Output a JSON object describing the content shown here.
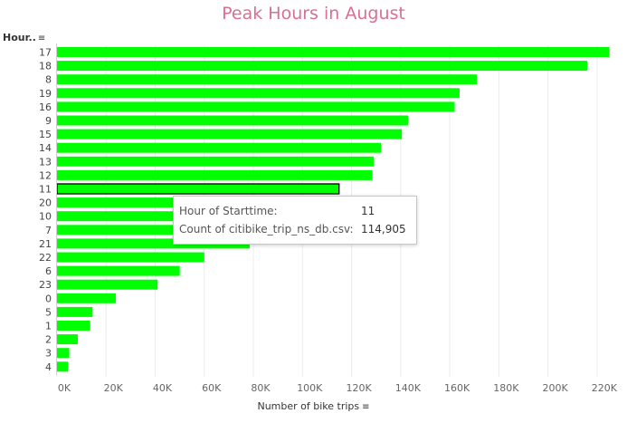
{
  "chart_data": {
    "type": "bar",
    "orientation": "horizontal",
    "title": "Peak Hours in August",
    "ylabel": "Hour..",
    "xlabel": "Number of bike trips",
    "categories": [
      "17",
      "18",
      "8",
      "19",
      "16",
      "9",
      "15",
      "14",
      "13",
      "12",
      "11",
      "20",
      "10",
      "7",
      "21",
      "22",
      "6",
      "23",
      "0",
      "5",
      "1",
      "2",
      "3",
      "4"
    ],
    "values": [
      225000,
      216000,
      171000,
      164000,
      162000,
      143000,
      140500,
      132000,
      129000,
      128500,
      114905,
      48000,
      48000,
      48000,
      78500,
      60000,
      50000,
      41000,
      24000,
      14500,
      13500,
      8500,
      5000,
      4500
    ],
    "xlim": [
      0,
      230000
    ],
    "xticks": [
      "0K",
      "20K",
      "40K",
      "60K",
      "80K",
      "100K",
      "120K",
      "140K",
      "160K",
      "180K",
      "200K",
      "220K"
    ],
    "bar_color": "#00ff00",
    "highlighted_index": 10,
    "grid": true
  },
  "tooltip": {
    "label1": "Hour of Starttime:",
    "value1": "11",
    "label2": "Count of citibike_trip_ns_db.csv:",
    "value2": "114,905"
  }
}
